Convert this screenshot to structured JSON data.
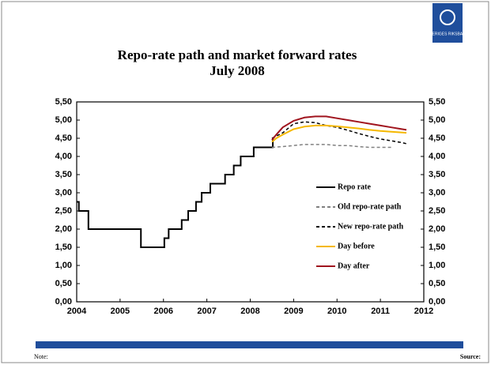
{
  "logo": "SVERIGES RIKSBANK",
  "footer": {
    "note": "Note:",
    "source": "Source:"
  },
  "chart_data": {
    "type": "line",
    "title": "Repo-rate path and market forward rates",
    "subtitle": "July 2008",
    "xlim": [
      2004,
      2012
    ],
    "xticks": [
      2004,
      2005,
      2006,
      2007,
      2008,
      2009,
      2010,
      2011,
      2012
    ],
    "ylim": [
      0,
      5.5
    ],
    "yticks": [
      {
        "value": 0,
        "label": "0,00"
      },
      {
        "value": 0.5,
        "label": "0,50"
      },
      {
        "value": 1,
        "label": "1,00"
      },
      {
        "value": 1.5,
        "label": "1,50"
      },
      {
        "value": 2,
        "label": "2,00"
      },
      {
        "value": 2.5,
        "label": "2,50"
      },
      {
        "value": 3,
        "label": "3,00"
      },
      {
        "value": 3.5,
        "label": "3,50"
      },
      {
        "value": 4,
        "label": "4,00"
      },
      {
        "value": 4.5,
        "label": "4,50"
      },
      {
        "value": 5,
        "label": "5,00"
      },
      {
        "value": 5.5,
        "label": "5,50"
      }
    ],
    "y2lim": [
      0,
      5.5
    ],
    "y2ticks": [
      {
        "value": 0,
        "label": "0,00"
      },
      {
        "value": 0.5,
        "label": "0,50"
      },
      {
        "value": 1,
        "label": "1,00"
      },
      {
        "value": 1.5,
        "label": "1,50"
      },
      {
        "value": 2,
        "label": "2,00"
      },
      {
        "value": 2.5,
        "label": "2,50"
      },
      {
        "value": 3,
        "label": "3,00"
      },
      {
        "value": 3.5,
        "label": "3,50"
      },
      {
        "value": 4,
        "label": "4,00"
      },
      {
        "value": 4.5,
        "label": "4,50"
      },
      {
        "value": 5,
        "label": "5,00"
      },
      {
        "value": 5.5,
        "label": "5,50"
      }
    ],
    "grid": false,
    "legend": "right",
    "series": [
      {
        "name": "Repo rate",
        "color": "#000000",
        "dash": "solid",
        "x": [
          2004,
          2004.05,
          2004.05,
          2004.27,
          2004.27,
          2005.48,
          2005.48,
          2006.02,
          2006.02,
          2006.12,
          2006.12,
          2006.42,
          2006.42,
          2006.57,
          2006.57,
          2006.75,
          2006.75,
          2006.88,
          2006.88,
          2007.08,
          2007.08,
          2007.42,
          2007.42,
          2007.62,
          2007.62,
          2007.78,
          2007.78,
          2008.08,
          2008.08,
          2008.52,
          2008.52
        ],
        "values": [
          2.75,
          2.75,
          2.5,
          2.5,
          2.0,
          2.0,
          1.5,
          1.5,
          1.75,
          1.75,
          2.0,
          2.0,
          2.25,
          2.25,
          2.5,
          2.5,
          2.75,
          2.75,
          3.0,
          3.0,
          3.25,
          3.25,
          3.5,
          3.5,
          3.75,
          3.75,
          4.0,
          4.0,
          4.25,
          4.25,
          4.5
        ]
      },
      {
        "name": "Old repo-rate path",
        "color": "#808080",
        "dash": "dashed",
        "x": [
          2008.5,
          2008.75,
          2009.0,
          2009.25,
          2009.5,
          2009.75,
          2010.0,
          2010.25,
          2010.5,
          2010.75,
          2011.0,
          2011.25
        ],
        "values": [
          4.25,
          4.27,
          4.3,
          4.33,
          4.33,
          4.33,
          4.3,
          4.3,
          4.27,
          4.25,
          4.25,
          4.25
        ]
      },
      {
        "name": "New repo-rate path",
        "color": "#000000",
        "dash": "dashed",
        "x": [
          2008.5,
          2008.75,
          2009.0,
          2009.25,
          2009.5,
          2009.75,
          2010.0,
          2010.25,
          2010.5,
          2010.75,
          2011.0,
          2011.25,
          2011.5,
          2011.6
        ],
        "values": [
          4.5,
          4.65,
          4.9,
          4.95,
          4.93,
          4.85,
          4.8,
          4.72,
          4.63,
          4.55,
          4.48,
          4.43,
          4.38,
          4.35
        ]
      },
      {
        "name": "Day before",
        "color": "#f5b800",
        "dash": "solid",
        "x": [
          2008.5,
          2008.6,
          2008.75,
          2009.0,
          2009.25,
          2009.5,
          2009.75,
          2010.0,
          2010.25,
          2010.5,
          2010.75,
          2011.0,
          2011.25,
          2011.6
        ],
        "values": [
          4.4,
          4.5,
          4.6,
          4.75,
          4.82,
          4.85,
          4.85,
          4.83,
          4.8,
          4.77,
          4.73,
          4.7,
          4.68,
          4.65
        ]
      },
      {
        "name": "Day after",
        "color": "#a0141e",
        "dash": "solid",
        "x": [
          2008.5,
          2008.6,
          2008.75,
          2009.0,
          2009.25,
          2009.5,
          2009.75,
          2010.0,
          2010.25,
          2010.5,
          2010.75,
          2011.0,
          2011.25,
          2011.6
        ],
        "values": [
          4.45,
          4.6,
          4.8,
          4.98,
          5.07,
          5.1,
          5.1,
          5.05,
          5.0,
          4.95,
          4.9,
          4.85,
          4.8,
          4.73
        ]
      }
    ]
  }
}
